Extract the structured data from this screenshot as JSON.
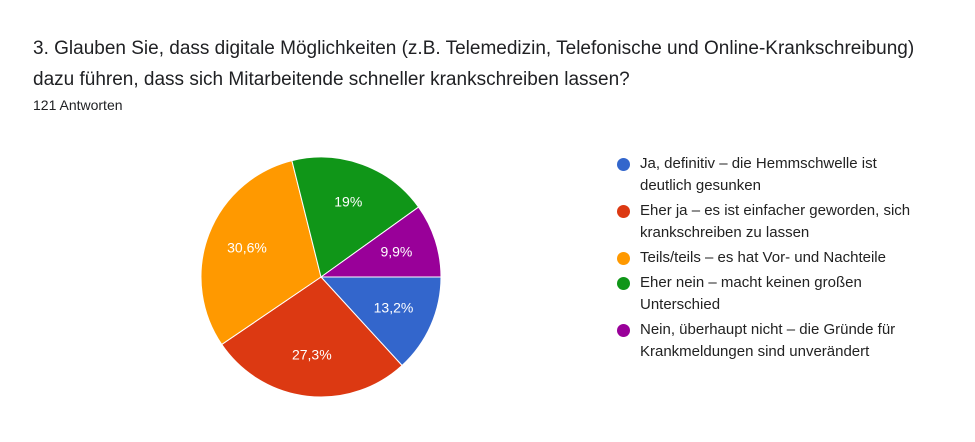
{
  "chart_data": {
    "type": "pie",
    "title": "3. Glauben Sie, dass digitale Möglichkeiten (z.B. Telemedizin, Telefonische und Online-Krankschreibung) dazu führen, dass sich Mitarbeitende schneller krankschreiben lassen?",
    "subtitle": "121 Antworten",
    "categories": [
      "Ja, definitiv – die Hemmschwelle ist deutlich gesunken",
      "Eher ja – es ist einfacher geworden, sich krankschreiben zu lassen",
      "Teils/teils – es hat Vor- und Nachteile",
      "Eher nein – macht keinen großen Unterschied",
      "Nein, überhaupt nicht – die Gründe für Krankmeldungen sind unverändert"
    ],
    "values": [
      13.2,
      27.3,
      30.6,
      19,
      9.9
    ],
    "value_labels": [
      "13,2%",
      "27,3%",
      "30,6%",
      "19%",
      "9,9%"
    ],
    "colors": [
      "#3366cc",
      "#dc3912",
      "#ff9900",
      "#109618",
      "#990099"
    ]
  }
}
